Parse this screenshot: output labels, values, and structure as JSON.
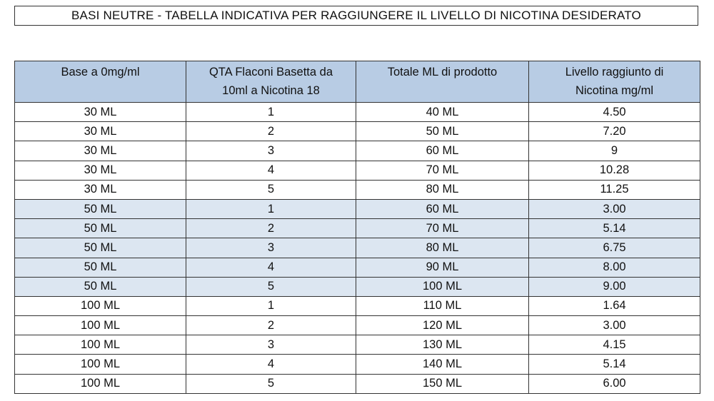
{
  "title": "BASI NEUTRE - TABELLA INDICATIVA PER RAGGIUNGERE IL LIVELLO DI NICOTINA DESIDERATO",
  "table": {
    "headers": [
      {
        "line1": "Base a 0mg/ml",
        "line2": ""
      },
      {
        "line1": "QTA Flaconi Basetta da",
        "line2": "10ml a Nicotina 18"
      },
      {
        "line1": "Totale ML di prodotto",
        "line2": ""
      },
      {
        "line1": "Livello raggıunto di",
        "line2": "Nicotina mg/ml"
      }
    ],
    "rows": [
      {
        "base": "30 ML",
        "qta": "1",
        "totale": "40 ML",
        "livello": "4.50",
        "band": false
      },
      {
        "base": "30 ML",
        "qta": "2",
        "totale": "50 ML",
        "livello": "7.20",
        "band": false
      },
      {
        "base": "30 ML",
        "qta": "3",
        "totale": "60 ML",
        "livello": "9",
        "band": false
      },
      {
        "base": "30 ML",
        "qta": "4",
        "totale": "70 ML",
        "livello": "10.28",
        "band": false
      },
      {
        "base": "30 ML",
        "qta": "5",
        "totale": "80 ML",
        "livello": "11.25",
        "band": false
      },
      {
        "base": "50 ML",
        "qta": "1",
        "totale": "60 ML",
        "livello": "3.00",
        "band": true
      },
      {
        "base": "50 ML",
        "qta": "2",
        "totale": "70 ML",
        "livello": "5.14",
        "band": true
      },
      {
        "base": "50 ML",
        "qta": "3",
        "totale": "80 ML",
        "livello": "6.75",
        "band": true
      },
      {
        "base": "50 ML",
        "qta": "4",
        "totale": "90 ML",
        "livello": "8.00",
        "band": true
      },
      {
        "base": "50 ML",
        "qta": "5",
        "totale": "100 ML",
        "livello": "9.00",
        "band": true
      },
      {
        "base": "100 ML",
        "qta": "1",
        "totale": "110 ML",
        "livello": "1.64",
        "band": false
      },
      {
        "base": "100 ML",
        "qta": "2",
        "totale": "120 ML",
        "livello": "3.00",
        "band": false
      },
      {
        "base": "100 ML",
        "qta": "3",
        "totale": "130 ML",
        "livello": "4.15",
        "band": false
      },
      {
        "base": "100 ML",
        "qta": "4",
        "totale": "140 ML",
        "livello": "5.14",
        "band": false
      },
      {
        "base": "100 ML",
        "qta": "5",
        "totale": "150 ML",
        "livello": "6.00",
        "band": false
      }
    ]
  },
  "colors": {
    "header_bg": "#b8cce4",
    "band_bg": "#dce6f1",
    "border": "#333333"
  }
}
